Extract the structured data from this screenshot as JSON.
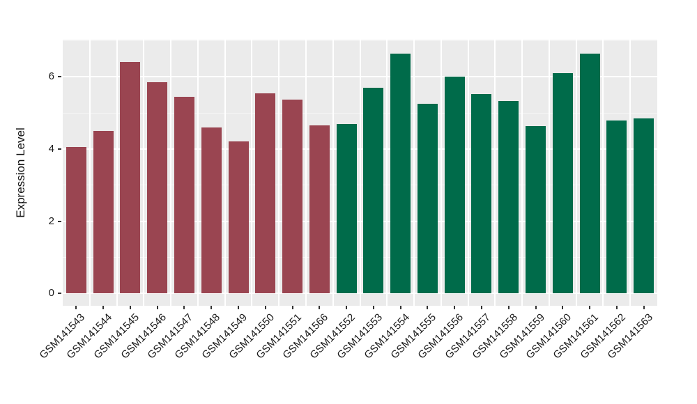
{
  "figure": {
    "background": "#FFFFFF",
    "panel_background": "#EBEBEB",
    "grid_color": "#FFFFFF",
    "axis_text_color": "#1A1A1A",
    "tick_mark_color": "#333333"
  },
  "chart_data": {
    "type": "bar",
    "title": "",
    "xlabel": "",
    "ylabel": "Expression Level",
    "ylim": [
      -0.34,
      7.03
    ],
    "yticks": [
      0,
      2,
      4,
      6
    ],
    "minor_yticks": [
      1,
      3,
      5,
      7
    ],
    "grid": "on",
    "legend_position": "none",
    "bar_color_left_group": "#9A4551",
    "bar_color_right_group": "#006B4A",
    "categories": [
      "GSM141543",
      "GSM141544",
      "GSM141545",
      "GSM141546",
      "GSM141547",
      "GSM141548",
      "GSM141549",
      "GSM141550",
      "GSM141551",
      "GSM141566",
      "GSM141552",
      "GSM141553",
      "GSM141554",
      "GSM141555",
      "GSM141556",
      "GSM141557",
      "GSM141558",
      "GSM141559",
      "GSM141560",
      "GSM141561",
      "GSM141562",
      "GSM141563"
    ],
    "values": [
      4.05,
      4.5,
      6.42,
      5.85,
      5.45,
      4.6,
      4.22,
      5.55,
      5.37,
      4.65,
      4.7,
      5.7,
      6.65,
      5.25,
      6.0,
      5.52,
      5.33,
      4.63,
      6.1,
      6.65,
      4.8,
      4.85
    ],
    "bar_colors": [
      "#9A4551",
      "#9A4551",
      "#9A4551",
      "#9A4551",
      "#9A4551",
      "#9A4551",
      "#9A4551",
      "#9A4551",
      "#9A4551",
      "#9A4551",
      "#006B4A",
      "#006B4A",
      "#006B4A",
      "#006B4A",
      "#006B4A",
      "#006B4A",
      "#006B4A",
      "#006B4A",
      "#006B4A",
      "#006B4A",
      "#006B4A",
      "#006B4A"
    ]
  }
}
